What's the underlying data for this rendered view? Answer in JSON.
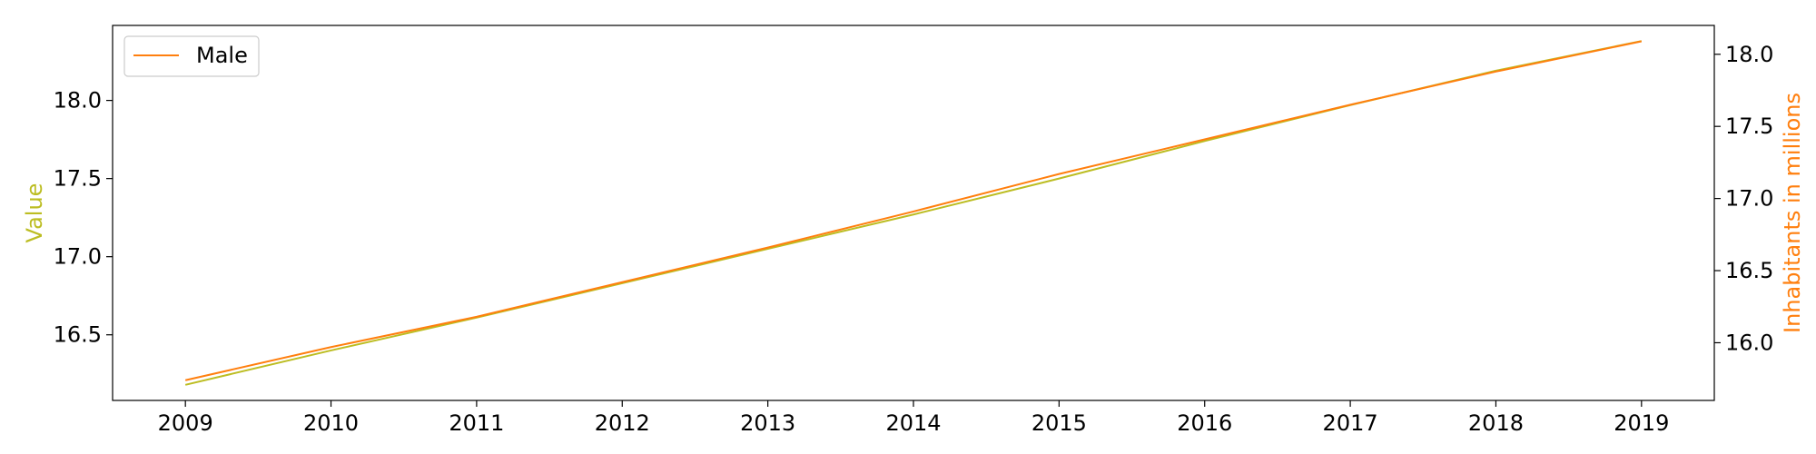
{
  "chart_data": {
    "type": "line",
    "x": [
      2009,
      2010,
      2011,
      2012,
      2013,
      2014,
      2015,
      2016,
      2017,
      2018,
      2019
    ],
    "xlim": [
      2008.5,
      2019.5
    ],
    "xticks": [
      "2009",
      "2010",
      "2011",
      "2012",
      "2013",
      "2014",
      "2015",
      "2016",
      "2017",
      "2018",
      "2019"
    ],
    "y_left": {
      "label": "Value",
      "color": "#bcbd22",
      "ylim": [
        16.08,
        18.48
      ],
      "ticks": [
        "16.5",
        "17.0",
        "17.5",
        "18.0"
      ],
      "values": [
        16.18,
        16.4,
        16.61,
        16.83,
        17.05,
        17.27,
        17.5,
        17.74,
        17.97,
        18.19,
        18.38
      ]
    },
    "y_right": {
      "label": "Inhabitants in millions",
      "color": "#ff7f0e",
      "ylim": [
        15.6,
        18.2
      ],
      "ticks": [
        "16.0",
        "16.5",
        "17.0",
        "17.5",
        "18.0"
      ]
    },
    "series": [
      {
        "name": "Male",
        "axis": "right",
        "color": "#ff7f0e",
        "values": [
          15.74,
          15.97,
          16.18,
          16.42,
          16.66,
          16.91,
          17.17,
          17.41,
          17.65,
          17.88,
          18.09
        ]
      }
    ],
    "legend": {
      "position": "top-left",
      "entries": [
        "Male"
      ]
    },
    "grid": false
  }
}
